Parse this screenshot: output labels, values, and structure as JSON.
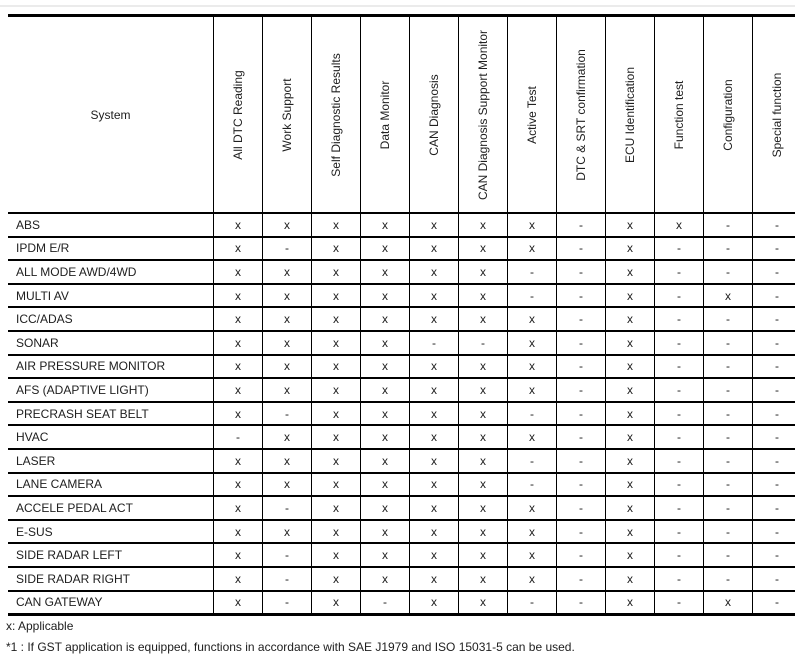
{
  "table": {
    "corner_header": "System",
    "columns": [
      "All DTC Reading",
      "Work Support",
      "Self Diagnostic Results",
      "Data Monitor",
      "CAN Diagnosis",
      "CAN Diagnosis Support Monitor",
      "Active Test",
      "DTC & SRT confirmation",
      "ECU Identification",
      "Function test",
      "Configuration",
      "Special function"
    ],
    "rows": [
      {
        "system": "ABS",
        "values": [
          "x",
          "x",
          "x",
          "x",
          "x",
          "x",
          "x",
          "-",
          "x",
          "x",
          "-",
          "-"
        ]
      },
      {
        "system": "IPDM E/R",
        "values": [
          "x",
          "-",
          "x",
          "x",
          "x",
          "x",
          "x",
          "-",
          "x",
          "-",
          "-",
          "-"
        ]
      },
      {
        "system": "ALL MODE AWD/4WD",
        "values": [
          "x",
          "x",
          "x",
          "x",
          "x",
          "x",
          "-",
          "-",
          "x",
          "-",
          "-",
          "-"
        ]
      },
      {
        "system": "MULTI AV",
        "values": [
          "x",
          "x",
          "x",
          "x",
          "x",
          "x",
          "-",
          "-",
          "x",
          "-",
          "x",
          "-"
        ]
      },
      {
        "system": "ICC/ADAS",
        "values": [
          "x",
          "x",
          "x",
          "x",
          "x",
          "x",
          "x",
          "-",
          "x",
          "-",
          "-",
          "-"
        ]
      },
      {
        "system": "SONAR",
        "values": [
          "x",
          "x",
          "x",
          "x",
          "-",
          "-",
          "x",
          "-",
          "x",
          "-",
          "-",
          "-"
        ]
      },
      {
        "system": "AIR PRESSURE MONITOR",
        "values": [
          "x",
          "x",
          "x",
          "x",
          "x",
          "x",
          "x",
          "-",
          "x",
          "-",
          "-",
          "-"
        ]
      },
      {
        "system": "AFS (ADAPTIVE LIGHT)",
        "values": [
          "x",
          "x",
          "x",
          "x",
          "x",
          "x",
          "x",
          "-",
          "x",
          "-",
          "-",
          "-"
        ]
      },
      {
        "system": "PRECRASH SEAT BELT",
        "values": [
          "x",
          "-",
          "x",
          "x",
          "x",
          "x",
          "-",
          "-",
          "x",
          "-",
          "-",
          "-"
        ]
      },
      {
        "system": "HVAC",
        "values": [
          "-",
          "x",
          "x",
          "x",
          "x",
          "x",
          "x",
          "-",
          "x",
          "-",
          "-",
          "-"
        ]
      },
      {
        "system": "LASER",
        "values": [
          "x",
          "x",
          "x",
          "x",
          "x",
          "x",
          "-",
          "-",
          "x",
          "-",
          "-",
          "-"
        ]
      },
      {
        "system": "LANE CAMERA",
        "values": [
          "x",
          "x",
          "x",
          "x",
          "x",
          "x",
          "-",
          "-",
          "x",
          "-",
          "-",
          "-"
        ]
      },
      {
        "system": "ACCELE PEDAL ACT",
        "values": [
          "x",
          "-",
          "x",
          "x",
          "x",
          "x",
          "x",
          "-",
          "x",
          "-",
          "-",
          "-"
        ]
      },
      {
        "system": "E-SUS",
        "values": [
          "x",
          "x",
          "x",
          "x",
          "x",
          "x",
          "x",
          "-",
          "x",
          "-",
          "-",
          "-"
        ]
      },
      {
        "system": "SIDE RADAR LEFT",
        "values": [
          "x",
          "-",
          "x",
          "x",
          "x",
          "x",
          "x",
          "-",
          "x",
          "-",
          "-",
          "-"
        ]
      },
      {
        "system": "SIDE RADAR RIGHT",
        "values": [
          "x",
          "-",
          "x",
          "x",
          "x",
          "x",
          "x",
          "-",
          "x",
          "-",
          "-",
          "-"
        ]
      },
      {
        "system": "CAN GATEWAY",
        "values": [
          "x",
          "-",
          "x",
          "-",
          "x",
          "x",
          "-",
          "-",
          "x",
          "-",
          "x",
          "-"
        ]
      }
    ]
  },
  "footnotes": {
    "applicable": "x: Applicable",
    "gst_note": "*1 : If GST application is equipped, functions in accordance with SAE J1979 and ISO 15031-5 can be used."
  },
  "colors": {
    "border": "#000000",
    "background": "#ffffff",
    "text": "#202020",
    "top_rule": "#ebebeb"
  }
}
